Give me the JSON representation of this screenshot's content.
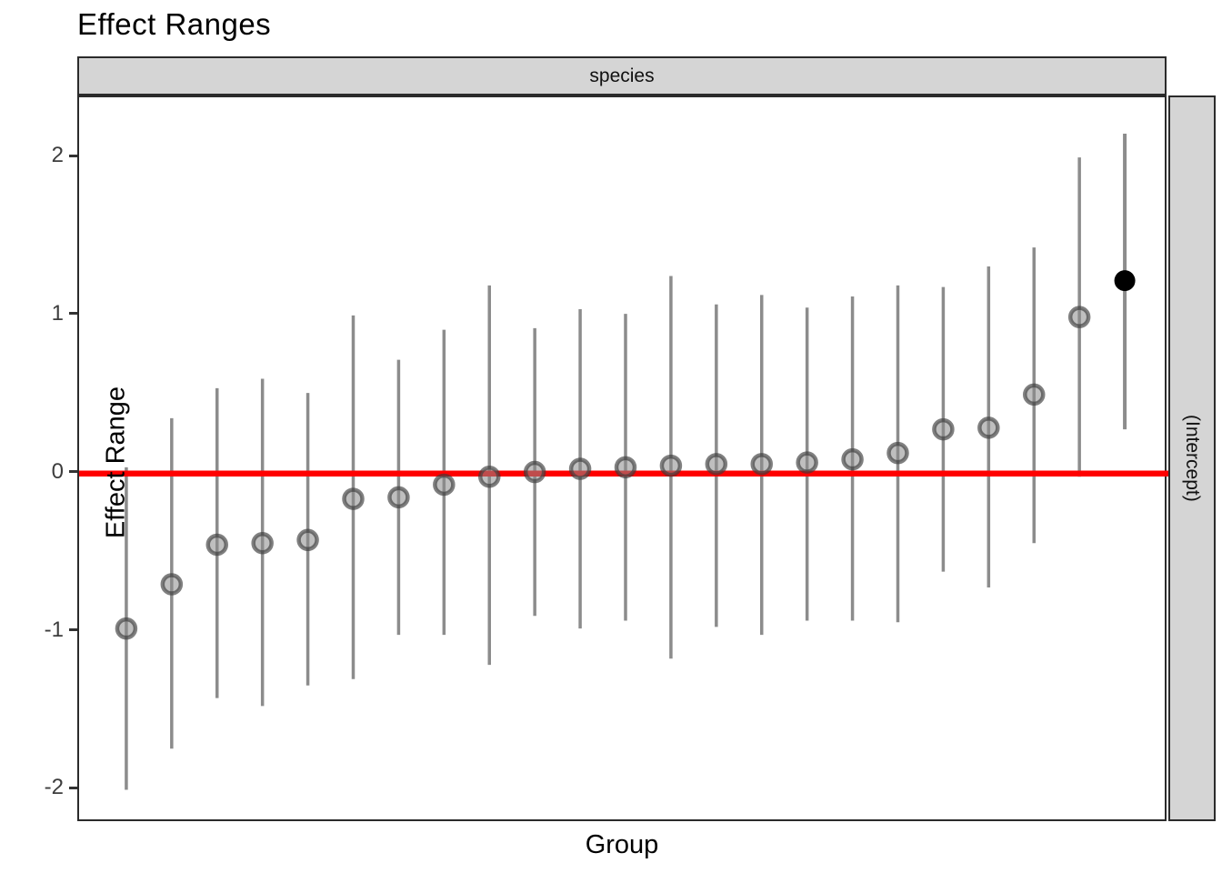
{
  "title": "Effect Ranges",
  "facet_top_label": "species",
  "facet_right_label": "(Intercept)",
  "colors": {
    "reference_line": "#ff0000",
    "strip_fill": "#d5d5d5",
    "strip_border": "#2b2b2b",
    "panel_border": "#2b2b2b",
    "error_bar": "#8c8c8c",
    "point_fill": "#8a8a8a",
    "point_stroke": "#3c3c3c",
    "fixed_point": "#000000",
    "tick_label": "#3d3d3d"
  },
  "chart_data": {
    "type": "scatter",
    "title": "Effect Ranges",
    "xlabel": "Group",
    "ylabel": "Effect Range",
    "ylim": [
      -2.21,
      2.38
    ],
    "yticks": [
      2,
      1,
      0,
      -1,
      -2
    ],
    "ytick_labels": [
      "2",
      "1",
      "0",
      "-1",
      "-2"
    ],
    "x_tick_labels_shown": false,
    "grid": false,
    "legend": "none",
    "facet_col_label": "species",
    "facet_row_label": "(Intercept)",
    "reference_line_y": 0,
    "series": [
      {
        "name": "random-group-effects",
        "marker": "open-gray-circle",
        "points": [
          {
            "est": -0.98,
            "lo": -2.0,
            "hi": 0.04
          },
          {
            "est": -0.7,
            "lo": -1.74,
            "hi": 0.35
          },
          {
            "est": -0.45,
            "lo": -1.42,
            "hi": 0.54
          },
          {
            "est": -0.44,
            "lo": -1.47,
            "hi": 0.6
          },
          {
            "est": -0.42,
            "lo": -1.34,
            "hi": 0.51
          },
          {
            "est": -0.16,
            "lo": -1.3,
            "hi": 1.0
          },
          {
            "est": -0.15,
            "lo": -1.02,
            "hi": 0.72
          },
          {
            "est": -0.07,
            "lo": -1.02,
            "hi": 0.91
          },
          {
            "est": -0.02,
            "lo": -1.21,
            "hi": 1.19
          },
          {
            "est": 0.01,
            "lo": -0.9,
            "hi": 0.92
          },
          {
            "est": 0.03,
            "lo": -0.98,
            "hi": 1.04
          },
          {
            "est": 0.04,
            "lo": -0.93,
            "hi": 1.01
          },
          {
            "est": 0.05,
            "lo": -1.17,
            "hi": 1.25
          },
          {
            "est": 0.06,
            "lo": -0.97,
            "hi": 1.07
          },
          {
            "est": 0.06,
            "lo": -1.02,
            "hi": 1.13
          },
          {
            "est": 0.07,
            "lo": -0.93,
            "hi": 1.05
          },
          {
            "est": 0.09,
            "lo": -0.93,
            "hi": 1.12
          },
          {
            "est": 0.13,
            "lo": -0.94,
            "hi": 1.19
          },
          {
            "est": 0.28,
            "lo": -0.62,
            "hi": 1.18
          },
          {
            "est": 0.29,
            "lo": -0.72,
            "hi": 1.31
          },
          {
            "est": 0.5,
            "lo": -0.44,
            "hi": 1.43
          },
          {
            "est": 0.99,
            "lo": -0.02,
            "hi": 2.0
          }
        ]
      },
      {
        "name": "fixed-effect-intercept",
        "marker": "solid-black-circle",
        "points": [
          {
            "est": 1.22,
            "lo": 0.28,
            "hi": 2.15
          }
        ]
      }
    ]
  }
}
